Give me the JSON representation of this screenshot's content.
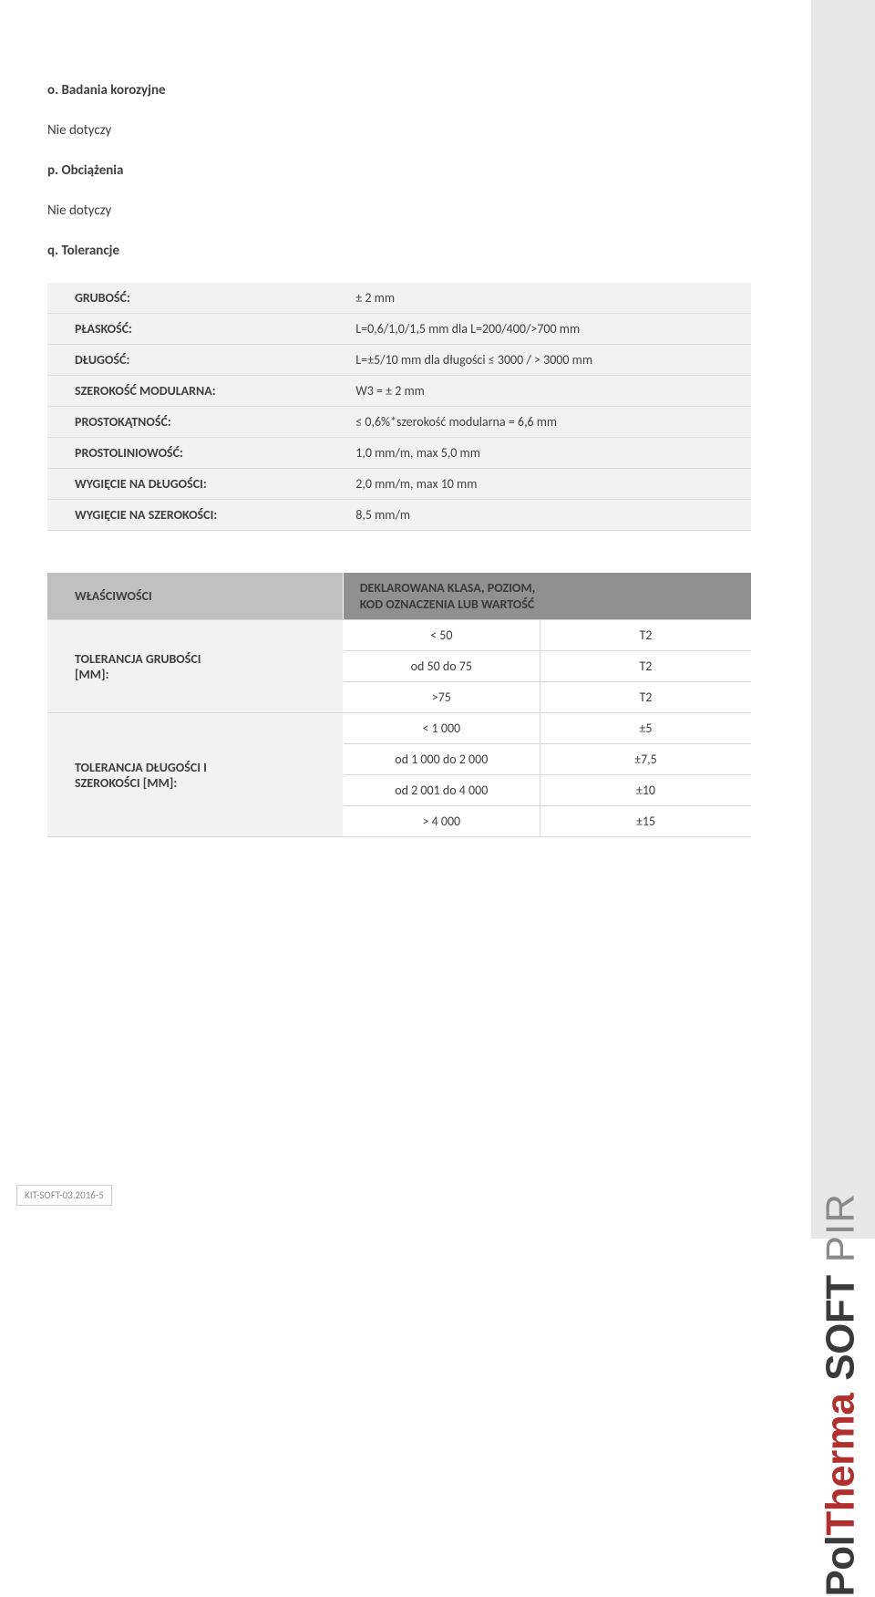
{
  "sections": {
    "o": {
      "heading": "o. Badania korozyjne",
      "body": "Nie dotyczy"
    },
    "p": {
      "heading": "p. Obciążenia",
      "body": "Nie dotyczy"
    },
    "q": {
      "heading": "q. Tolerancje"
    }
  },
  "tolerances": {
    "rows": [
      {
        "label": "GRUBOŚĆ:",
        "value": "± 2 mm"
      },
      {
        "label": "PŁASKOŚĆ:",
        "value": "L=0,6/1,0/1,5 mm dla L=200/400/>700 mm"
      },
      {
        "label": "DŁUGOŚĆ:",
        "value": "L=±5/10 mm dla długości ≤ 3000 / > 3000 mm"
      },
      {
        "label": "SZEROKOŚĆ MODULARNA:",
        "value": "W3 = ± 2 mm"
      },
      {
        "label": "PROSTOKĄTNOŚĆ:",
        "value": "≤ 0,6%*szerokość modularna = 6,6 mm"
      },
      {
        "label": "PROSTOLINIOWOŚĆ:",
        "value": "1,0 mm/m, max 5,0 mm"
      },
      {
        "label": "WYGIĘCIE NA DŁUGOŚCI:",
        "value": "2,0 mm/m, max 10 mm"
      },
      {
        "label": "WYGIĘCIE NA SZEROKOŚCI:",
        "value": "8,5 mm/m"
      }
    ]
  },
  "properties": {
    "left_header": "WŁAŚCIWOŚCI",
    "right_header_l1": "DEKLAROWANA KLASA, POZIOM,",
    "right_header_l2": "KOD OZNACZENIA LUB WARTOŚĆ",
    "groups": [
      {
        "label_l1": "TOLERANCJA GRUBOŚCI",
        "label_l2": "[MM]:",
        "rows": [
          {
            "range": "< 50",
            "value": "T2"
          },
          {
            "range": "od 50 do 75",
            "value": "T2"
          },
          {
            "range": ">75",
            "value": "T2"
          }
        ]
      },
      {
        "label_l1": "TOLERANCJA DŁUGOŚCI I",
        "label_l2": "SZEROKOŚCI [MM]:",
        "rows": [
          {
            "range": "< 1 000",
            "value": "±5"
          },
          {
            "range": "od 1 000 do 2 000",
            "value": "±7,5"
          },
          {
            "range": "od 2 001 do 4 000",
            "value": "±10"
          },
          {
            "range": "> 4 000",
            "value": "±15"
          }
        ]
      }
    ]
  },
  "brand": {
    "p1": "Pol",
    "p2": "Therma",
    "p3": "SOFT",
    "p4": "PIR"
  },
  "footer": "KIT-SOFT-03.2016-5",
  "colors": {
    "text": "#3f3f3f",
    "row_bg": "#f2f2f2",
    "header_left_bg": "#c0c0c0",
    "header_right_bg": "#909090",
    "sidebar_bg": "#e8e8e8",
    "brand_red": "#b03030",
    "brand_dark": "#3a3a3a",
    "brand_gray": "#8a8a8a",
    "border": "#dcdcdc"
  }
}
